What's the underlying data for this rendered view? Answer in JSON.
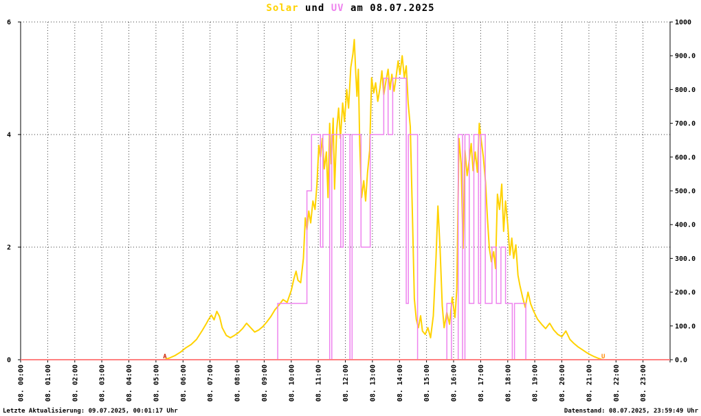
{
  "title": {
    "solar": "Solar",
    "und": " und ",
    "uv": "UV",
    "date": " am 08.07.2025"
  },
  "footer": {
    "left": "Letzte Aktualisierung: 09.07.2025, 00:01:17 Uhr",
    "right": "Datenstand: 08.07.2025, 23:59:49 Uhr"
  },
  "colors": {
    "solar": "#ffd200",
    "uv": "#ee82ee",
    "baseline": "#ff8080",
    "sunrise_marker": "#cc2200",
    "sunset_marker": "#ff8800",
    "grid": "#3a3a3a"
  },
  "chart_data": {
    "type": "line",
    "title": "Solar und UV am 08.07.2025",
    "grid": "dotted",
    "x_ticks": [
      "08. 00:00",
      "08. 01:00",
      "08. 02:00",
      "08. 03:00",
      "08. 04:00",
      "08. 05:00",
      "08. 06:00",
      "08. 07:00",
      "08. 08:00",
      "08. 09:00",
      "08. 10:00",
      "08. 11:00",
      "08. 12:00",
      "08. 13:00",
      "08. 14:00",
      "08. 15:00",
      "08. 16:00",
      "08. 17:00",
      "08. 18:00",
      "08. 19:00",
      "08. 20:00",
      "08. 21:00",
      "08. 22:00",
      "08. 23:00"
    ],
    "x_range_hours": [
      0,
      24
    ],
    "y_left": {
      "range": [
        0,
        6
      ],
      "gridlines": [
        2,
        4,
        6
      ],
      "labels": [
        {
          "v": 6,
          "t": "6"
        },
        {
          "v": 4,
          "t": "4"
        },
        {
          "v": 2,
          "t": "2"
        },
        {
          "v": 0,
          "t": "0"
        }
      ]
    },
    "y_right": {
      "range": [
        0,
        1000
      ],
      "tick_step": 100,
      "labels": [
        {
          "v": 1000,
          "t": "1000"
        },
        {
          "v": 900,
          "t": "900.0"
        },
        {
          "v": 800,
          "t": "800.0"
        },
        {
          "v": 700,
          "t": "700.0"
        },
        {
          "v": 600,
          "t": "600.0"
        },
        {
          "v": 500,
          "t": "500.0"
        },
        {
          "v": 400,
          "t": "400.0"
        },
        {
          "v": 300,
          "t": "300.0"
        },
        {
          "v": 200,
          "t": "200.0"
        },
        {
          "v": 100,
          "t": "100.0"
        },
        {
          "v": 0,
          "t": "0.0"
        }
      ]
    },
    "series": [
      {
        "name": "Solar",
        "axis": "right",
        "style": "line",
        "color": "#ffd200",
        "points": [
          [
            0,
            0
          ],
          [
            5.3,
            0
          ],
          [
            5.5,
            5
          ],
          [
            5.7,
            12
          ],
          [
            5.9,
            22
          ],
          [
            6.1,
            35
          ],
          [
            6.3,
            45
          ],
          [
            6.5,
            60
          ],
          [
            6.7,
            85
          ],
          [
            6.85,
            105
          ],
          [
            6.95,
            120
          ],
          [
            7.05,
            132
          ],
          [
            7.15,
            118
          ],
          [
            7.25,
            143
          ],
          [
            7.35,
            128
          ],
          [
            7.45,
            95
          ],
          [
            7.6,
            72
          ],
          [
            7.75,
            65
          ],
          [
            7.9,
            72
          ],
          [
            8.05,
            80
          ],
          [
            8.2,
            92
          ],
          [
            8.35,
            108
          ],
          [
            8.5,
            95
          ],
          [
            8.65,
            82
          ],
          [
            8.8,
            88
          ],
          [
            8.95,
            98
          ],
          [
            9.1,
            112
          ],
          [
            9.25,
            128
          ],
          [
            9.4,
            148
          ],
          [
            9.55,
            162
          ],
          [
            9.7,
            178
          ],
          [
            9.85,
            170
          ],
          [
            10,
            205
          ],
          [
            10.1,
            240
          ],
          [
            10.18,
            262
          ],
          [
            10.25,
            235
          ],
          [
            10.35,
            228
          ],
          [
            10.45,
            300
          ],
          [
            10.52,
            420
          ],
          [
            10.58,
            385
          ],
          [
            10.65,
            440
          ],
          [
            10.72,
            405
          ],
          [
            10.8,
            470
          ],
          [
            10.88,
            445
          ],
          [
            10.95,
            520
          ],
          [
            11.02,
            635
          ],
          [
            11.08,
            600
          ],
          [
            11.15,
            655
          ],
          [
            11.22,
            565
          ],
          [
            11.3,
            615
          ],
          [
            11.36,
            480
          ],
          [
            11.42,
            700
          ],
          [
            11.48,
            580
          ],
          [
            11.55,
            715
          ],
          [
            11.6,
            505
          ],
          [
            11.68,
            680
          ],
          [
            11.75,
            745
          ],
          [
            11.82,
            655
          ],
          [
            11.9,
            760
          ],
          [
            11.97,
            705
          ],
          [
            12.05,
            800
          ],
          [
            12.12,
            745
          ],
          [
            12.2,
            865
          ],
          [
            12.28,
            905
          ],
          [
            12.33,
            948
          ],
          [
            12.38,
            855
          ],
          [
            12.43,
            780
          ],
          [
            12.48,
            860
          ],
          [
            12.53,
            640
          ],
          [
            12.6,
            480
          ],
          [
            12.68,
            530
          ],
          [
            12.75,
            470
          ],
          [
            12.82,
            555
          ],
          [
            12.9,
            620
          ],
          [
            12.97,
            835
          ],
          [
            13.05,
            790
          ],
          [
            13.12,
            820
          ],
          [
            13.2,
            765
          ],
          [
            13.28,
            805
          ],
          [
            13.35,
            855
          ],
          [
            13.42,
            785
          ],
          [
            13.5,
            825
          ],
          [
            13.58,
            860
          ],
          [
            13.65,
            800
          ],
          [
            13.72,
            845
          ],
          [
            13.8,
            795
          ],
          [
            13.88,
            840
          ],
          [
            13.95,
            885
          ],
          [
            14.02,
            845
          ],
          [
            14.1,
            900
          ],
          [
            14.18,
            835
          ],
          [
            14.25,
            870
          ],
          [
            14.32,
            760
          ],
          [
            14.4,
            690
          ],
          [
            14.48,
            420
          ],
          [
            14.55,
            180
          ],
          [
            14.62,
            120
          ],
          [
            14.7,
            95
          ],
          [
            14.78,
            130
          ],
          [
            14.85,
            85
          ],
          [
            14.95,
            75
          ],
          [
            15.05,
            95
          ],
          [
            15.15,
            65
          ],
          [
            15.25,
            130
          ],
          [
            15.35,
            300
          ],
          [
            15.42,
            455
          ],
          [
            15.5,
            330
          ],
          [
            15.58,
            160
          ],
          [
            15.65,
            95
          ],
          [
            15.75,
            140
          ],
          [
            15.85,
            105
          ],
          [
            15.95,
            185
          ],
          [
            16.05,
            125
          ],
          [
            16.12,
            210
          ],
          [
            16.2,
            655
          ],
          [
            16.28,
            580
          ],
          [
            16.35,
            330
          ],
          [
            16.42,
            620
          ],
          [
            16.5,
            545
          ],
          [
            16.58,
            590
          ],
          [
            16.65,
            640
          ],
          [
            16.72,
            560
          ],
          [
            16.8,
            615
          ],
          [
            16.88,
            555
          ],
          [
            16.95,
            700
          ],
          [
            17.02,
            650
          ],
          [
            17.1,
            600
          ],
          [
            17.18,
            525
          ],
          [
            17.25,
            420
          ],
          [
            17.32,
            330
          ],
          [
            17.4,
            290
          ],
          [
            17.48,
            320
          ],
          [
            17.55,
            270
          ],
          [
            17.62,
            490
          ],
          [
            17.7,
            445
          ],
          [
            17.78,
            520
          ],
          [
            17.85,
            380
          ],
          [
            17.92,
            470
          ],
          [
            18,
            400
          ],
          [
            18.08,
            310
          ],
          [
            18.15,
            360
          ],
          [
            18.22,
            300
          ],
          [
            18.3,
            340
          ],
          [
            18.38,
            250
          ],
          [
            18.45,
            220
          ],
          [
            18.55,
            185
          ],
          [
            18.65,
            155
          ],
          [
            18.75,
            200
          ],
          [
            18.85,
            165
          ],
          [
            18.95,
            145
          ],
          [
            19.1,
            120
          ],
          [
            19.25,
            105
          ],
          [
            19.4,
            92
          ],
          [
            19.55,
            108
          ],
          [
            19.7,
            88
          ],
          [
            19.85,
            75
          ],
          [
            20,
            68
          ],
          [
            20.15,
            85
          ],
          [
            20.3,
            60
          ],
          [
            20.45,
            48
          ],
          [
            20.6,
            38
          ],
          [
            20.75,
            30
          ],
          [
            20.9,
            22
          ],
          [
            21.05,
            15
          ],
          [
            21.2,
            9
          ],
          [
            21.35,
            4
          ],
          [
            21.5,
            0
          ],
          [
            24,
            0
          ]
        ]
      },
      {
        "name": "UV",
        "axis": "left",
        "style": "step",
        "color": "#ee82ee",
        "points": [
          [
            0,
            0
          ],
          [
            9.5,
            1
          ],
          [
            10.58,
            3
          ],
          [
            10.75,
            4
          ],
          [
            11.08,
            2
          ],
          [
            11.17,
            4
          ],
          [
            11.42,
            0
          ],
          [
            11.5,
            4
          ],
          [
            11.83,
            2
          ],
          [
            11.92,
            4
          ],
          [
            12.17,
            0
          ],
          [
            12.25,
            4
          ],
          [
            12.58,
            2
          ],
          [
            12.92,
            4
          ],
          [
            13.42,
            5
          ],
          [
            13.58,
            4
          ],
          [
            13.75,
            5
          ],
          [
            14.25,
            1
          ],
          [
            14.33,
            4
          ],
          [
            14.67,
            0
          ],
          [
            15.75,
            1
          ],
          [
            15.92,
            0
          ],
          [
            16.17,
            4
          ],
          [
            16.33,
            0
          ],
          [
            16.42,
            4
          ],
          [
            16.58,
            1
          ],
          [
            16.75,
            4
          ],
          [
            16.92,
            1
          ],
          [
            17,
            4
          ],
          [
            17.17,
            1
          ],
          [
            17.42,
            2
          ],
          [
            17.58,
            1
          ],
          [
            17.75,
            2
          ],
          [
            17.92,
            1
          ],
          [
            18.17,
            0
          ],
          [
            18.25,
            1
          ],
          [
            18.67,
            0
          ],
          [
            24,
            0
          ]
        ]
      }
    ],
    "annotations": [
      {
        "text": "A",
        "t": 5.33,
        "color": "#cc2200"
      },
      {
        "text": "U",
        "t": 21.53,
        "color": "#ff8800"
      }
    ],
    "baseline": {
      "value": 0,
      "color": "#ff8080"
    }
  }
}
